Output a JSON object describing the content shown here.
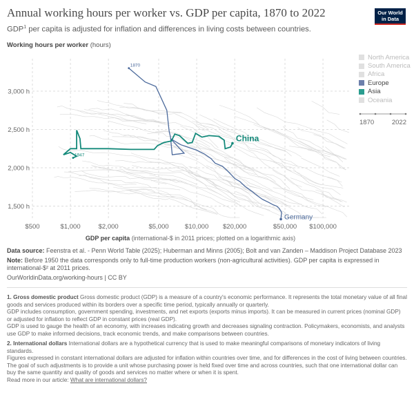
{
  "header": {
    "title": "Annual working hours per worker vs. GDP per capita, 1870 to 2022",
    "subtitle_pre": "GDP",
    "subtitle_sup": "1",
    "subtitle_post": " per capita is adjusted for inflation and differences in living costs between countries.",
    "logo": "Our World in Data"
  },
  "chart_data": {
    "type": "scatter",
    "title": "Annual working hours per worker vs. GDP per capita, 1870 to 2022",
    "ylabel": "Working hours per worker",
    "yunit": "(hours)",
    "xlabel": "GDP per capita",
    "xunit": "(international-$ in 2011 prices; plotted on a logarithmic axis)",
    "xscale": "log",
    "xlim": [
      420,
      160000
    ],
    "ylim": [
      1290,
      3380
    ],
    "xticks": [
      {
        "v": 500,
        "label": "$500"
      },
      {
        "v": 1000,
        "label": "$1,000"
      },
      {
        "v": 2000,
        "label": "$2,000"
      },
      {
        "v": 5000,
        "label": "$5,000"
      },
      {
        "v": 10000,
        "label": "$10,000"
      },
      {
        "v": 20000,
        "label": "$20,000"
      },
      {
        "v": 50000,
        "label": "$50,000"
      },
      {
        "v": 100000,
        "label": "$100,000"
      }
    ],
    "yticks": [
      {
        "v": 1500,
        "label": "1,500 h"
      },
      {
        "v": 2000,
        "label": "2,000 h"
      },
      {
        "v": 2500,
        "label": "2,500 h"
      },
      {
        "v": 3000,
        "label": "3,000 h"
      }
    ],
    "grid": true,
    "legend_placement": "right",
    "series": [
      {
        "name": "Germany",
        "region": "Europe",
        "color": "#4c6a9c",
        "start_label": "1870",
        "points": [
          [
            2900,
            3300
          ],
          [
            3900,
            3120
          ],
          [
            4750,
            3060
          ],
          [
            5800,
            2750
          ],
          [
            6050,
            2480
          ],
          [
            6200,
            2400
          ],
          [
            6400,
            2170
          ],
          [
            7950,
            2190
          ],
          [
            6200,
            2380
          ],
          [
            7500,
            2300
          ],
          [
            10000,
            2230
          ],
          [
            11500,
            2180
          ],
          [
            13000,
            2120
          ],
          [
            14000,
            2060
          ],
          [
            16000,
            2020
          ],
          [
            17500,
            1960
          ],
          [
            19000,
            1900
          ],
          [
            20000,
            1860
          ],
          [
            22000,
            1820
          ],
          [
            24000,
            1760
          ],
          [
            27000,
            1700
          ],
          [
            30000,
            1640
          ],
          [
            33000,
            1590
          ],
          [
            37000,
            1550
          ],
          [
            40000,
            1520
          ],
          [
            43000,
            1500
          ],
          [
            45000,
            1470
          ],
          [
            47000,
            1420
          ],
          [
            46400,
            1330
          ]
        ]
      },
      {
        "name": "China",
        "region": "Asia",
        "color": "#13897a",
        "start_label": "1947",
        "points": [
          [
            1050,
            2130
          ],
          [
            1120,
            2150
          ],
          [
            1000,
            2200
          ],
          [
            880,
            2170
          ],
          [
            1000,
            2250
          ],
          [
            1120,
            2250
          ],
          [
            1120,
            2490
          ],
          [
            1190,
            2380
          ],
          [
            1210,
            2250
          ],
          [
            1500,
            2250
          ],
          [
            2000,
            2250
          ],
          [
            3000,
            2240
          ],
          [
            4600,
            2240
          ],
          [
            4900,
            2290
          ],
          [
            5500,
            2330
          ],
          [
            6300,
            2350
          ],
          [
            6700,
            2440
          ],
          [
            7300,
            2420
          ],
          [
            8500,
            2320
          ],
          [
            9200,
            2330
          ],
          [
            9800,
            2450
          ],
          [
            11000,
            2400
          ],
          [
            12500,
            2420
          ],
          [
            15000,
            2410
          ],
          [
            16500,
            2360
          ],
          [
            16800,
            2250
          ],
          [
            18500,
            2270
          ],
          [
            19200,
            2320
          ]
        ]
      }
    ]
  },
  "legend": {
    "items": [
      {
        "label": "North America",
        "color": "#e0e0e0",
        "active": false
      },
      {
        "label": "South America",
        "color": "#e0e0e0",
        "active": false
      },
      {
        "label": "Africa",
        "color": "#e0e0e0",
        "active": false
      },
      {
        "label": "Europe",
        "color": "#6d7fab",
        "active": true
      },
      {
        "label": "Asia",
        "color": "#2a9d8f",
        "active": true
      },
      {
        "label": "Oceania",
        "color": "#e0e0e0",
        "active": false
      }
    ]
  },
  "timeline": {
    "start": "1870",
    "end": "2022"
  },
  "footer": {
    "source_label": "Data source:",
    "source": " Feenstra et al. - Penn World Table (2025); Huberman and Minns (2005); Bolt and van Zanden – Maddison Project Database 2023",
    "note_label": "Note:",
    "note": " Before 1950 the data corresponds only to full-time production workers (non-agricultural activities). GDP per capita is expressed in international-$² at 2011 prices.",
    "url": "OurWorldinData.org/working-hours | CC BY"
  },
  "notes": {
    "n1_title": "1. Gross domestic product",
    "n1_p1": " Gross domestic product (GDP) is a measure of a country's economic performance. It represents the total monetary value of all final goods and services produced within its borders over a specific time period, typically annually or quarterly.",
    "n1_p2": "GDP includes consumption, government spending, investments, and net exports (exports minus imports). It can be measured in current prices (nominal GDP) or adjusted for inflation to reflect GDP in constant prices (real GDP).",
    "n1_p3": "GDP is used to gauge the health of an economy, with increases indicating growth and decreases signaling contraction. Policymakers, economists, and analysts use GDP to make informed decisions, track economic trends, and make comparisons between countries.",
    "n2_title": "2. International dollars",
    "n2_p1": " International dollars are a hypothetical currency that is used to make meaningful comparisons of monetary indicators of living standards.",
    "n2_p2": "Figures expressed in constant international dollars are adjusted for inflation within countries over time, and for differences in the cost of living between countries.",
    "n2_p3": "The goal of such adjustments is to provide a unit whose purchasing power is held fixed over time and across countries, such that one international dollar can buy the same quantity and quality of goods and services no matter where or when it is spent.",
    "n2_read": "Read more in our article: ",
    "n2_link": "What are international dollars?"
  }
}
